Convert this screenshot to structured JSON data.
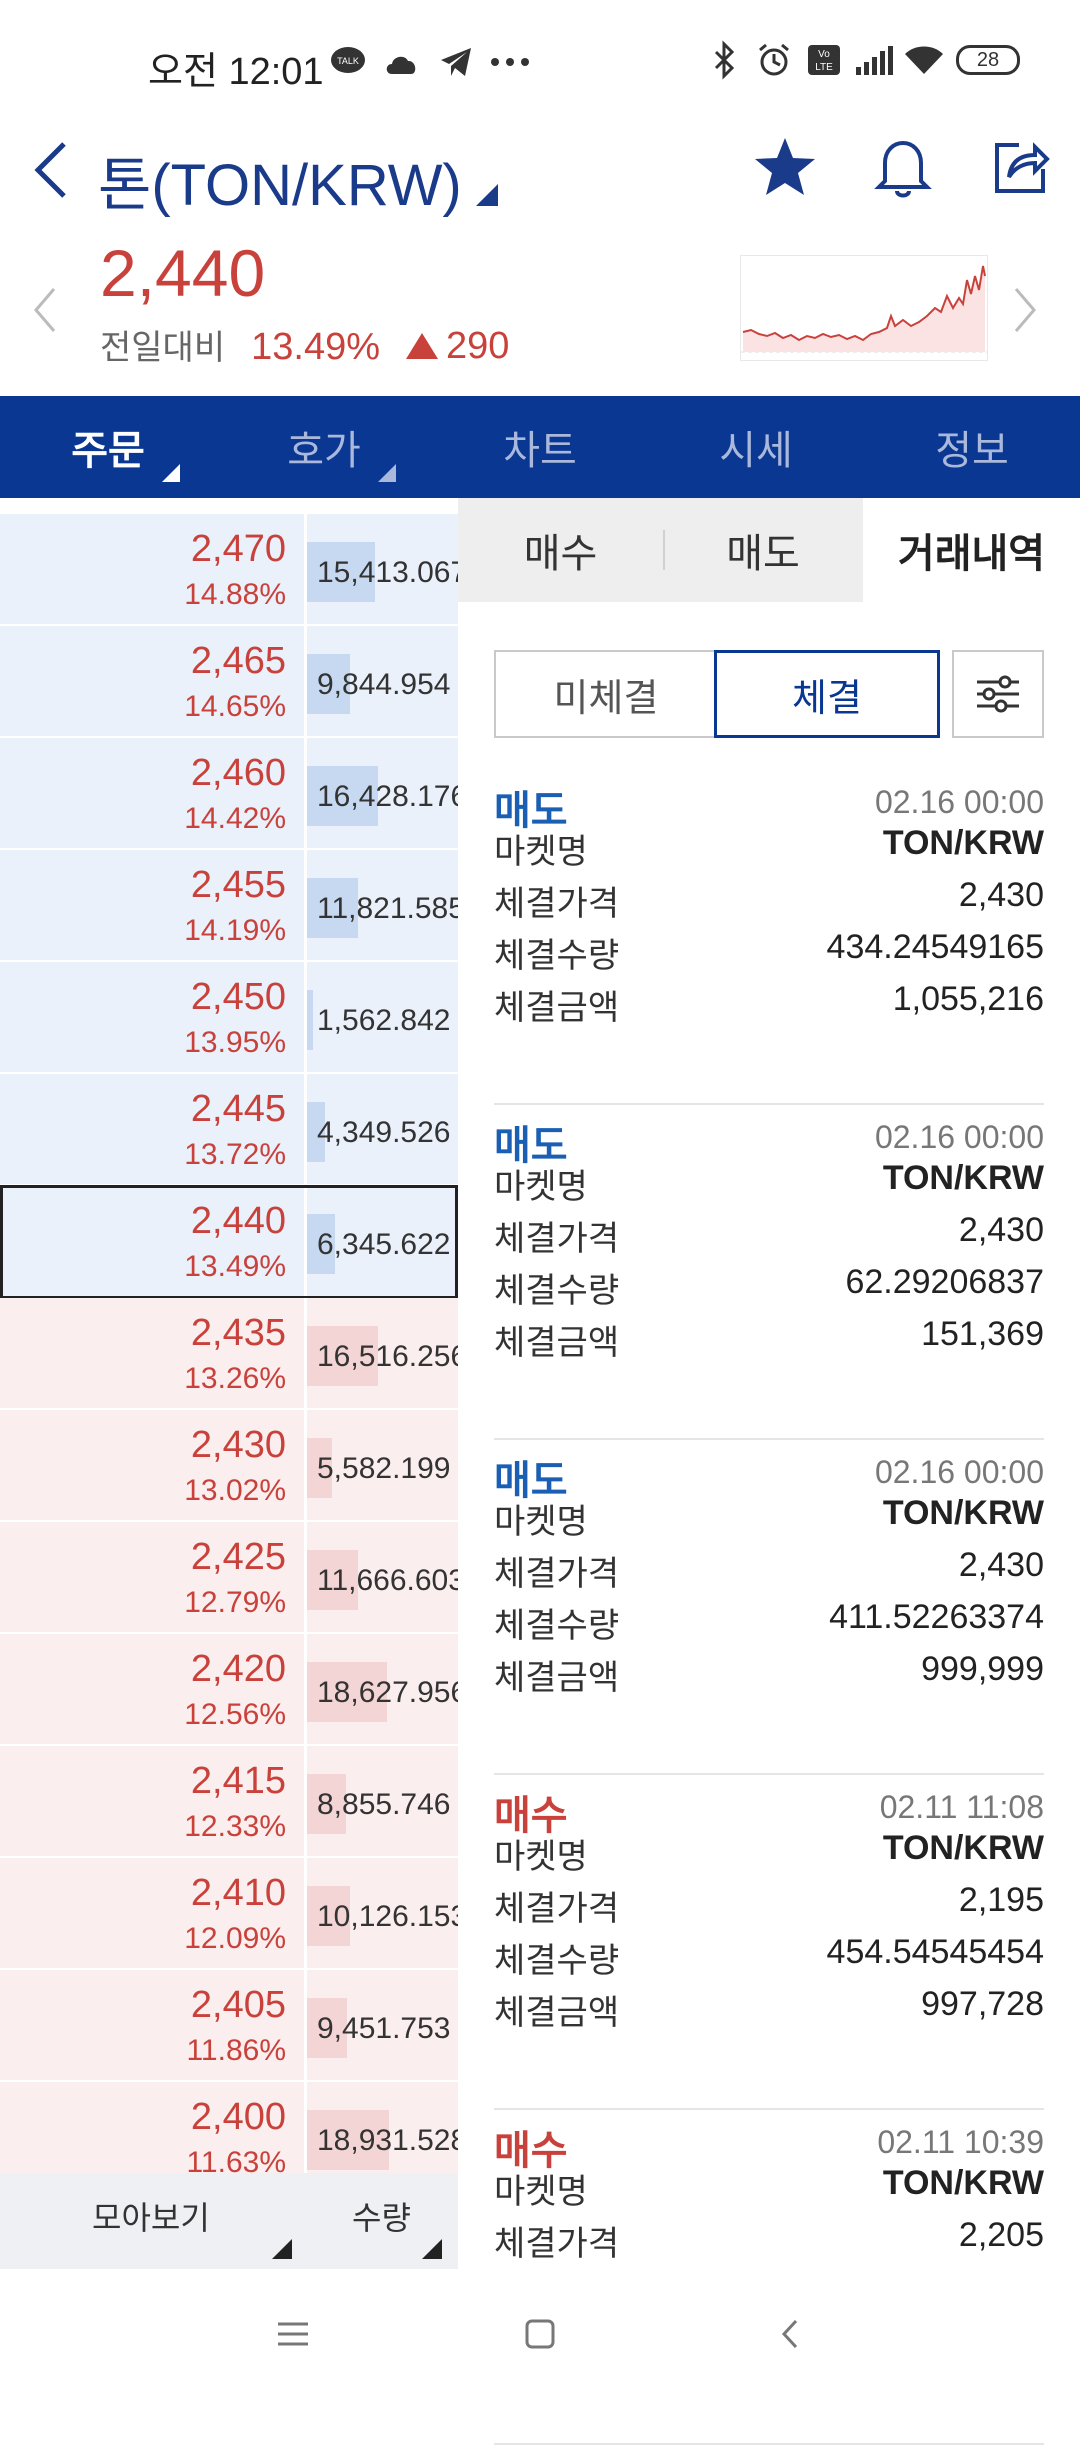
{
  "status_bar": {
    "time": "오전 12:01",
    "battery": "28",
    "left_icons": [
      "kakaotalk-icon",
      "cloud-icon",
      "telegram-icon",
      "more-dots-icon"
    ],
    "right_icons": [
      "bluetooth-icon",
      "alarm-icon",
      "volte-icon",
      "signal-icon",
      "wifi-icon",
      "battery-icon"
    ]
  },
  "header": {
    "title": "톤(TON/KRW)",
    "icons": [
      "star-icon",
      "bell-icon",
      "share-icon"
    ]
  },
  "price": {
    "current": "2,440",
    "change_label": "전일대비",
    "change_pct": "13.49%",
    "change_abs": "290",
    "direction": "up",
    "color_up": "#c8423b"
  },
  "tabs": [
    {
      "label": "주문",
      "active": true,
      "dropdown": true
    },
    {
      "label": "호가",
      "active": false,
      "dropdown": true
    },
    {
      "label": "차트",
      "active": false,
      "dropdown": false
    },
    {
      "label": "시세",
      "active": false,
      "dropdown": false
    },
    {
      "label": "정보",
      "active": false,
      "dropdown": false
    }
  ],
  "orderbook": {
    "rows": [
      {
        "price": "2,470",
        "pct": "14.88%",
        "qty": "15,413.067",
        "side": "ask",
        "level": 0.44
      },
      {
        "price": "2,465",
        "pct": "14.65%",
        "qty": "9,844.954",
        "side": "ask",
        "level": 0.28
      },
      {
        "price": "2,460",
        "pct": "14.42%",
        "qty": "16,428.176",
        "side": "ask",
        "level": 0.46
      },
      {
        "price": "2,455",
        "pct": "14.19%",
        "qty": "11,821.585",
        "side": "ask",
        "level": 0.33
      },
      {
        "price": "2,450",
        "pct": "13.95%",
        "qty": "1,562.842",
        "side": "ask",
        "level": 0.04
      },
      {
        "price": "2,445",
        "pct": "13.72%",
        "qty": "4,349.526",
        "side": "ask",
        "level": 0.12
      },
      {
        "price": "2,440",
        "pct": "13.49%",
        "qty": "6,345.622",
        "side": "ask",
        "level": 0.18,
        "current": true
      },
      {
        "price": "2,435",
        "pct": "13.26%",
        "qty": "16,516.256",
        "side": "bid",
        "level": 0.46
      },
      {
        "price": "2,430",
        "pct": "13.02%",
        "qty": "5,582.199",
        "side": "bid",
        "level": 0.16
      },
      {
        "price": "2,425",
        "pct": "12.79%",
        "qty": "11,666.603",
        "side": "bid",
        "level": 0.33
      },
      {
        "price": "2,420",
        "pct": "12.56%",
        "qty": "18,627.956",
        "side": "bid",
        "level": 0.52
      },
      {
        "price": "2,415",
        "pct": "12.33%",
        "qty": "8,855.746",
        "side": "bid",
        "level": 0.25
      },
      {
        "price": "2,410",
        "pct": "12.09%",
        "qty": "10,126.153",
        "side": "bid",
        "level": 0.28
      },
      {
        "price": "2,405",
        "pct": "11.86%",
        "qty": "9,451.753",
        "side": "bid",
        "level": 0.26
      },
      {
        "price": "2,400",
        "pct": "11.63%",
        "qty": "18,931.528",
        "side": "bid",
        "level": 0.53
      }
    ],
    "footer": {
      "group_label": "모아보기",
      "qty_label": "수량"
    }
  },
  "panel": {
    "subtabs": [
      {
        "label": "매수",
        "active": false
      },
      {
        "label": "매도",
        "active": false
      },
      {
        "label": "거래내역",
        "active": true
      }
    ],
    "segment": [
      {
        "label": "미체결",
        "active": false
      },
      {
        "label": "체결",
        "active": true
      }
    ],
    "filter_icon": "sliders-icon",
    "field_labels": {
      "market": "마켓명",
      "price": "체결가격",
      "qty": "체결수량",
      "amount": "체결금액"
    },
    "trades": [
      {
        "side": "매도",
        "side_type": "sell",
        "date": "02.16 00:00",
        "market": "TON/KRW",
        "price": "2,430",
        "qty": "434.24549165",
        "amount": "1,055,216"
      },
      {
        "side": "매도",
        "side_type": "sell",
        "date": "02.16 00:00",
        "market": "TON/KRW",
        "price": "2,430",
        "qty": "62.29206837",
        "amount": "151,369"
      },
      {
        "side": "매도",
        "side_type": "sell",
        "date": "02.16 00:00",
        "market": "TON/KRW",
        "price": "2,430",
        "qty": "411.52263374",
        "amount": "999,999"
      },
      {
        "side": "매수",
        "side_type": "buy",
        "date": "02.11 11:08",
        "market": "TON/KRW",
        "price": "2,195",
        "qty": "454.54545454",
        "amount": "997,728"
      },
      {
        "side": "매수",
        "side_type": "buy",
        "date": "02.11 10:39",
        "market": "TON/KRW",
        "price": "2,205"
      }
    ]
  },
  "navbar": {
    "icons": [
      "menu-icon",
      "home-square-icon",
      "back-icon"
    ]
  }
}
